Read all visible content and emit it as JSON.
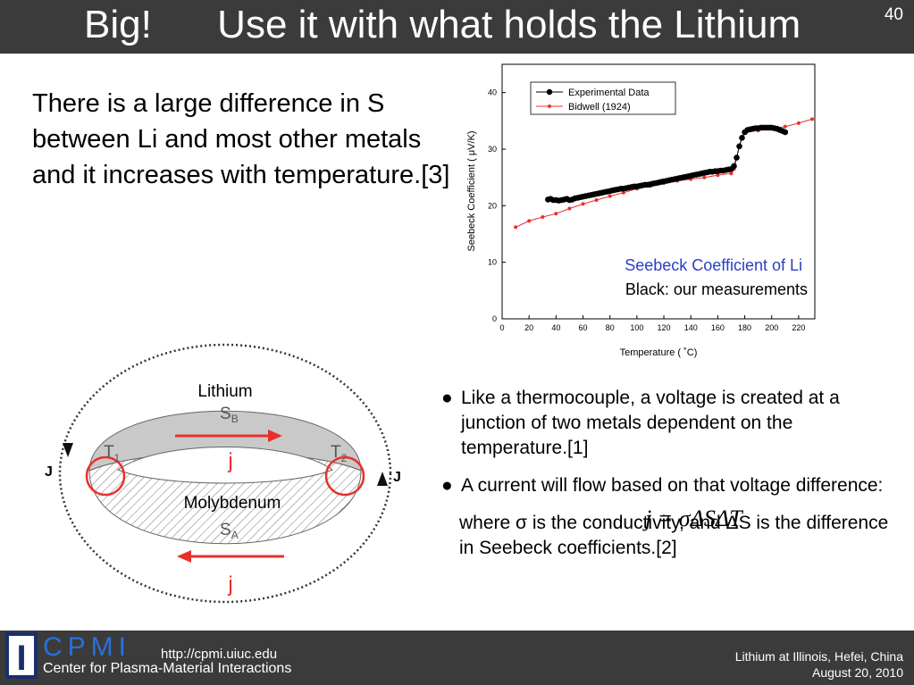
{
  "header": {
    "title": "Big!      Use it with what holds the Lithium",
    "slide_number": "40"
  },
  "intro_text": "There is a large difference in S between Li and most other metals and it increases with temperature.[3]",
  "chart_data": {
    "type": "scatter",
    "title": "",
    "xlabel": "Temperature ( ˚C)",
    "ylabel": "Seebeck Coefficient ( μV/K)",
    "xlim": [
      0,
      232
    ],
    "ylim": [
      0,
      45
    ],
    "x_ticks": [
      0,
      20,
      40,
      60,
      80,
      100,
      120,
      140,
      160,
      180,
      200,
      220
    ],
    "y_ticks": [
      0,
      10,
      20,
      30,
      40
    ],
    "legend_position": "top",
    "series": [
      {
        "name": "Experimental Data",
        "color": "#000000",
        "x": [
          34,
          36,
          38,
          40,
          42,
          44,
          46,
          48,
          50,
          52,
          54,
          56,
          58,
          60,
          62,
          64,
          66,
          68,
          70,
          72,
          74,
          76,
          78,
          80,
          82,
          84,
          86,
          88,
          90,
          92,
          94,
          96,
          98,
          100,
          102,
          104,
          106,
          108,
          110,
          112,
          114,
          116,
          118,
          120,
          122,
          124,
          126,
          128,
          130,
          132,
          134,
          136,
          138,
          140,
          142,
          144,
          146,
          148,
          150,
          152,
          154,
          156,
          158,
          160,
          162,
          164,
          166,
          168,
          170,
          172,
          174,
          176,
          178,
          180,
          182,
          184,
          186,
          188,
          190,
          192,
          194,
          196,
          198,
          200,
          202,
          204,
          206,
          208,
          210
        ],
        "y": [
          21.1,
          21.2,
          21.0,
          21.0,
          20.9,
          21.0,
          21.1,
          21.2,
          21.0,
          21.1,
          21.3,
          21.4,
          21.5,
          21.6,
          21.7,
          21.8,
          21.9,
          22.0,
          22.1,
          22.2,
          22.3,
          22.4,
          22.5,
          22.6,
          22.7,
          22.8,
          22.9,
          23.0,
          23.0,
          23.1,
          23.2,
          23.3,
          23.4,
          23.4,
          23.5,
          23.6,
          23.7,
          23.7,
          23.8,
          23.9,
          24.0,
          24.1,
          24.2,
          24.3,
          24.4,
          24.5,
          24.6,
          24.7,
          24.8,
          24.9,
          25.0,
          25.1,
          25.2,
          25.3,
          25.4,
          25.5,
          25.6,
          25.7,
          25.8,
          25.9,
          26.0,
          26.0,
          26.1,
          26.1,
          26.2,
          26.2,
          26.3,
          26.4,
          26.5,
          27.0,
          28.5,
          30.5,
          32.0,
          33.0,
          33.4,
          33.5,
          33.6,
          33.7,
          33.7,
          33.8,
          33.8,
          33.8,
          33.8,
          33.8,
          33.7,
          33.6,
          33.4,
          33.2,
          33.0
        ]
      },
      {
        "name": "Bidwell (1924)",
        "color": "#e8302b",
        "x": [
          10,
          20,
          30,
          40,
          50,
          60,
          70,
          80,
          90,
          100,
          110,
          120,
          130,
          140,
          150,
          160,
          170,
          172,
          174,
          176,
          178,
          180,
          190,
          200,
          210,
          220,
          230
        ],
        "y": [
          16.2,
          17.3,
          18.0,
          18.6,
          19.5,
          20.3,
          21.0,
          21.7,
          22.3,
          23.0,
          23.5,
          24.0,
          24.4,
          24.7,
          25.0,
          25.4,
          25.7,
          26.5,
          28.5,
          30.5,
          32.0,
          33.0,
          33.3,
          33.6,
          34.0,
          34.6,
          35.3
        ]
      }
    ],
    "annotations": [
      "Seebeck Coefficient of Li",
      "Black: our measurements"
    ]
  },
  "diagram": {
    "top_metal": "Lithium",
    "top_symbol": "S",
    "top_subscript": "B",
    "bottom_metal": "Molybdenum",
    "bottom_symbol": "S",
    "bottom_subscript": "A",
    "left_junction": "T",
    "left_junction_sub": "1",
    "right_junction": "T",
    "right_junction_sub": "2",
    "current_top": "j",
    "current_bottom": "j",
    "loop_left": "J",
    "loop_right": "J",
    "colors": {
      "top_fill": "#c9c9c9",
      "arrow": "#e8302b"
    }
  },
  "bullets": [
    "Like a thermocouple, a voltage is created at a junction of two metals dependent on the temperature.[1]",
    "A current will flow based on that voltage difference:"
  ],
  "bullet_symbol": "●",
  "equation": "j = σΔSΔT",
  "where_text": "where σ is the conductivity, and ΔS is the difference in Seebeck coefficients.[2]",
  "footer": {
    "logo_letter": "I",
    "cpmi": "CPMI",
    "center_name": "Center for Plasma-Material Interactions",
    "url": "http://cpmi.uiuc.edu",
    "conference": "Lithium at Illinois, Hefei, China",
    "date": "August 20, 2010"
  }
}
